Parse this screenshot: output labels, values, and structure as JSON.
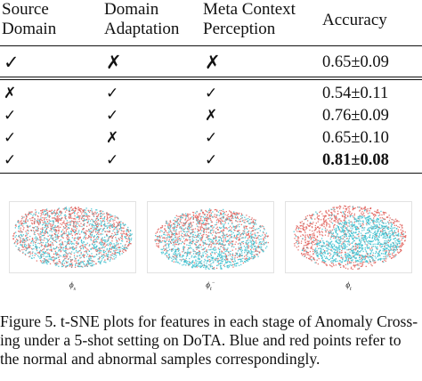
{
  "table": {
    "headers": [
      {
        "line1": "Source",
        "line2": "Domain"
      },
      {
        "line1": "Domain",
        "line2": "Adaptation"
      },
      {
        "line1": "Meta Context",
        "line2": "Perception"
      },
      {
        "line1": "Accuracy",
        "line2": ""
      }
    ],
    "rows": [
      {
        "source_domain": "✓",
        "domain_adaptation": "✗",
        "meta_context": "✗",
        "accuracy": "0.65±0.09"
      },
      {
        "source_domain": "✗",
        "domain_adaptation": "✓",
        "meta_context": "✓",
        "accuracy": "0.54±0.11"
      },
      {
        "source_domain": "✓",
        "domain_adaptation": "✓",
        "meta_context": "✗",
        "accuracy": "0.76±0.09"
      },
      {
        "source_domain": "✓",
        "domain_adaptation": "✗",
        "meta_context": "✓",
        "accuracy": "0.65±0.10"
      },
      {
        "source_domain": "✓",
        "domain_adaptation": "✓",
        "meta_context": "✓",
        "accuracy": "0.81±0.08"
      }
    ],
    "best_row_index": 4
  },
  "panels": [
    {
      "label_base": "ϕ",
      "label_sub": "s",
      "label_sup": ""
    },
    {
      "label_base": "ϕ",
      "label_sub": "t",
      "label_sup": "−"
    },
    {
      "label_base": "ϕ",
      "label_sub": "t",
      "label_sup": ""
    }
  ],
  "point_colors": {
    "normal": "#3bbfcf",
    "abnormal": "#e0605a"
  },
  "caption": {
    "line1": "Figure 5. t-SNE plots for features in each stage of Anomaly Cross-",
    "line2": "ing under a 5-shot setting on DoTA. Blue and red points refer to",
    "line3": "the normal and abnormal samples correspondingly."
  }
}
